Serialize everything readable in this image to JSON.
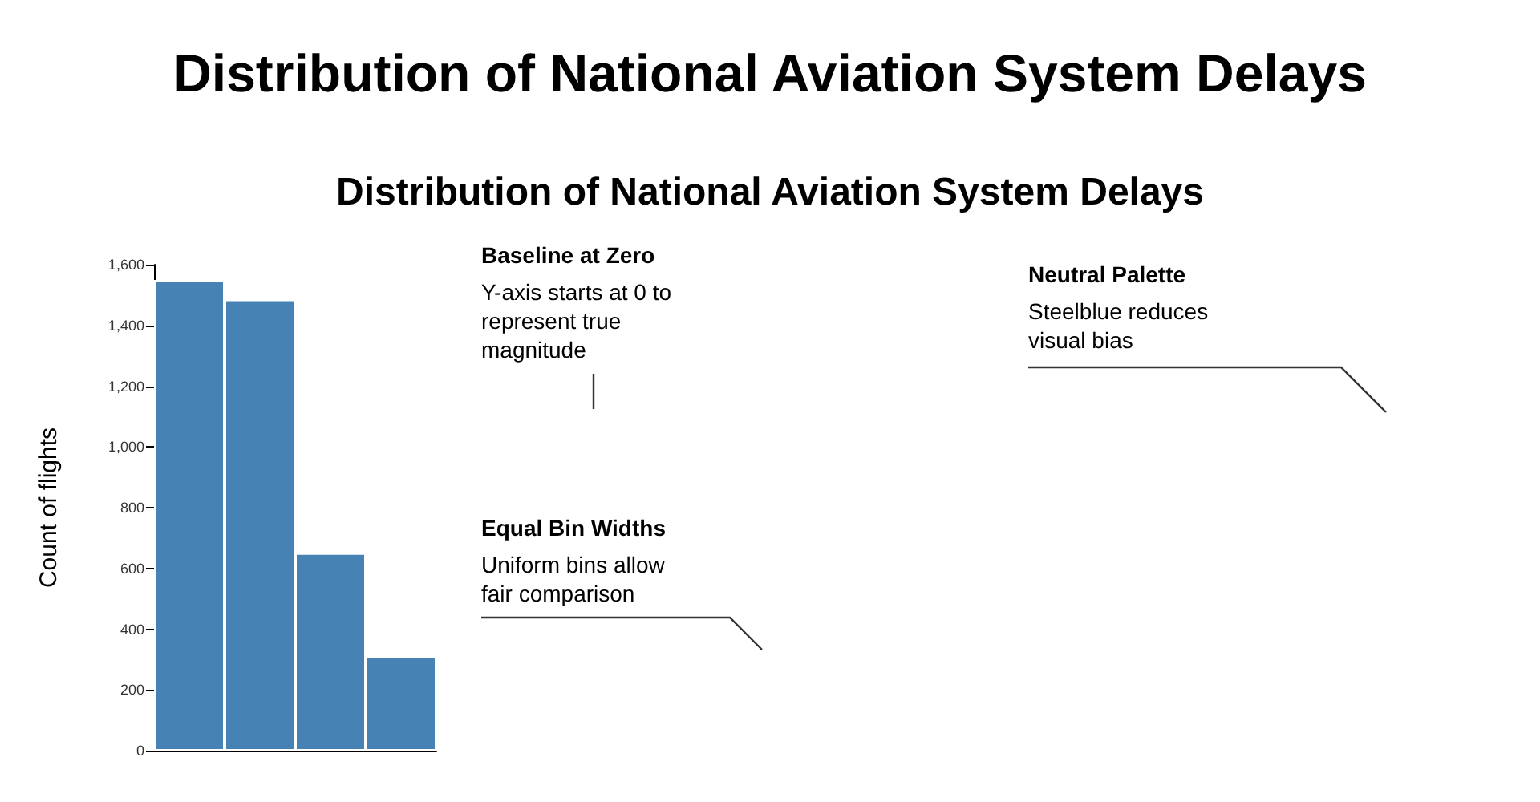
{
  "chart_data": {
    "type": "histogram",
    "title": "Distribution of National Aviation System Delays",
    "subtitle": "Distribution of National Aviation System Delays",
    "ylabel": "Count of flights",
    "categories": [
      null,
      null,
      null,
      null
    ],
    "values": [
      1550,
      1485,
      650,
      310
    ],
    "color": "#4682b4",
    "ylim": [
      0,
      1600
    ],
    "yticks": [
      0,
      200,
      400,
      600,
      800,
      {
        "value": 1000,
        "label": "1,000"
      },
      {
        "value": 1200,
        "label": "1,200"
      },
      {
        "value": 1400,
        "label": "1,400"
      },
      {
        "value": 1600,
        "label": "1,600"
      }
    ],
    "tick_labels": "y",
    "annotations": [
      "Baseline at Zero",
      "Y-axis starts at 0 to represent true magnitude",
      "Equal Bin Widths",
      "Uniform bins allow fair comparison",
      "Neutral Palette",
      "Steelblue reduces visual bias"
    ]
  }
}
